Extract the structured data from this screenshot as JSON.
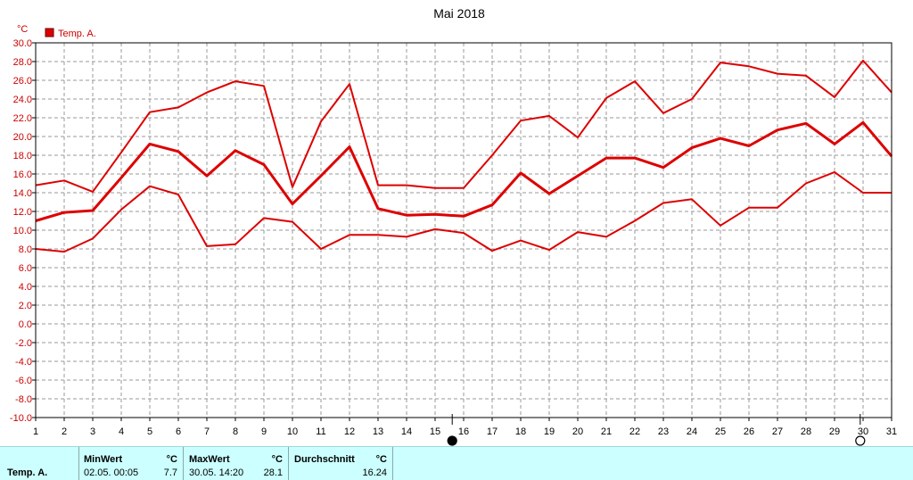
{
  "chart_data": {
    "type": "line",
    "title": "Mai 2018",
    "unit_label": "°C",
    "legend": [
      "Temp. A."
    ],
    "x": [
      1,
      2,
      3,
      4,
      5,
      6,
      7,
      8,
      9,
      10,
      11,
      12,
      13,
      14,
      15,
      16,
      17,
      18,
      19,
      20,
      21,
      22,
      23,
      24,
      25,
      26,
      27,
      28,
      29,
      30,
      31
    ],
    "xlim": [
      1,
      31
    ],
    "ylim": [
      -10,
      30
    ],
    "y_ticks": [
      "-10.0",
      "-8.0",
      "-6.0",
      "-4.0",
      "-2.0",
      "0.0",
      "2.0",
      "4.0",
      "6.0",
      "8.0",
      "10.0",
      "12.0",
      "14.0",
      "16.0",
      "18.0",
      "20.0",
      "22.0",
      "24.0",
      "26.0",
      "28.0",
      "30.0"
    ],
    "grid": true,
    "series": [
      {
        "role": "max",
        "values": [
          14.8,
          15.3,
          14.1,
          18.3,
          22.6,
          23.1,
          24.7,
          25.9,
          25.4,
          14.6,
          21.6,
          25.6,
          14.8,
          14.8,
          14.5,
          14.5,
          18.0,
          21.7,
          22.2,
          19.9,
          24.1,
          25.9,
          22.5,
          24.0,
          27.9,
          27.5,
          26.7,
          26.5,
          24.2,
          28.1,
          24.7
        ]
      },
      {
        "role": "avg",
        "values": [
          11.0,
          11.9,
          12.1,
          15.6,
          19.2,
          18.4,
          15.8,
          18.5,
          17.0,
          12.8,
          15.8,
          18.9,
          12.3,
          11.6,
          11.7,
          11.5,
          12.7,
          16.1,
          13.9,
          15.8,
          17.7,
          17.7,
          16.7,
          18.8,
          19.8,
          19.0,
          20.7,
          21.4,
          19.2,
          21.5,
          17.9
        ]
      },
      {
        "role": "min",
        "values": [
          8.0,
          7.7,
          9.1,
          12.2,
          14.7,
          13.8,
          8.3,
          8.5,
          11.3,
          10.9,
          8.0,
          9.5,
          9.5,
          9.3,
          10.1,
          9.7,
          7.8,
          8.9,
          7.9,
          9.8,
          9.3,
          11.0,
          12.9,
          13.3,
          10.5,
          12.4,
          12.4,
          15.0,
          16.2,
          14.0,
          14.0
        ]
      }
    ],
    "markers": [
      {
        "day": 15.6,
        "symbol": "filled-circle"
      },
      {
        "day": 29.9,
        "symbol": "open-circle"
      }
    ]
  },
  "colors": {
    "series": "#dd0000",
    "grid": "#999999",
    "stats_bg": "#ccffff"
  },
  "stats": {
    "row_label": "Temp. A.",
    "min_header": "MinWert",
    "min_unit": "°C",
    "min_time": "02.05.  00:05",
    "min_value": "7.7",
    "max_header": "MaxWert",
    "max_unit": "°C",
    "max_time": "30.05.  14:20",
    "max_value": "28.1",
    "avg_header": "Durchschnitt",
    "avg_unit": "°C",
    "avg_value": "16.24"
  }
}
